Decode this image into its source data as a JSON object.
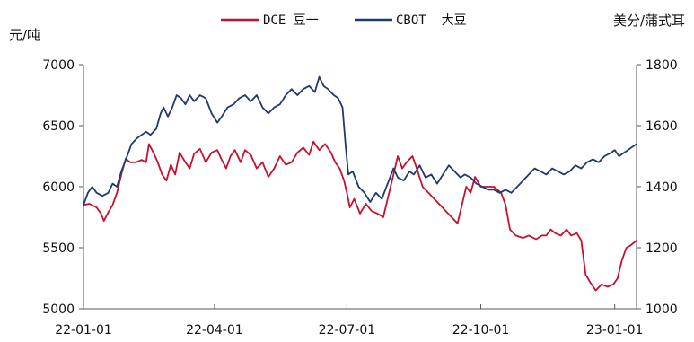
{
  "chart_data": {
    "type": "line",
    "y_left_label": "元/吨",
    "y_right_label": "美分/蒲式耳",
    "y_left_ticks": [
      "7000",
      "6500",
      "6000",
      "5500",
      "5000"
    ],
    "y_right_ticks": [
      "1800",
      "1600",
      "1400",
      "1200",
      "1000"
    ],
    "x_ticks": [
      "22-01-01",
      "22-04-01",
      "22-07-01",
      "22-10-01",
      "23-01-01"
    ],
    "ylim_left": [
      5000,
      7000
    ],
    "ylim_right": [
      1000,
      1800
    ],
    "x_range": [
      "2022-01-01",
      "2023-01-16"
    ],
    "grid": false,
    "legend_position": "top",
    "series": [
      {
        "name": "DCE 豆一",
        "axis": "left",
        "color": "#c8102e",
        "points": [
          [
            "2022-01-01",
            5850
          ],
          [
            "2022-01-05",
            5860
          ],
          [
            "2022-01-10",
            5830
          ],
          [
            "2022-01-13",
            5780
          ],
          [
            "2022-01-15",
            5720
          ],
          [
            "2022-01-18",
            5790
          ],
          [
            "2022-01-21",
            5850
          ],
          [
            "2022-01-24",
            5950
          ],
          [
            "2022-01-27",
            6100
          ],
          [
            "2022-01-30",
            6230
          ],
          [
            "2022-02-02",
            6200
          ],
          [
            "2022-02-06",
            6200
          ],
          [
            "2022-02-10",
            6220
          ],
          [
            "2022-02-13",
            6200
          ],
          [
            "2022-02-15",
            6350
          ],
          [
            "2022-02-18",
            6280
          ],
          [
            "2022-02-21",
            6200
          ],
          [
            "2022-02-24",
            6100
          ],
          [
            "2022-02-27",
            6050
          ],
          [
            "2022-03-02",
            6180
          ],
          [
            "2022-03-05",
            6100
          ],
          [
            "2022-03-08",
            6280
          ],
          [
            "2022-03-12",
            6200
          ],
          [
            "2022-03-15",
            6150
          ],
          [
            "2022-03-18",
            6270
          ],
          [
            "2022-03-22",
            6310
          ],
          [
            "2022-03-26",
            6200
          ],
          [
            "2022-03-30",
            6280
          ],
          [
            "2022-04-03",
            6300
          ],
          [
            "2022-04-06",
            6220
          ],
          [
            "2022-04-09",
            6150
          ],
          [
            "2022-04-12",
            6250
          ],
          [
            "2022-04-15",
            6300
          ],
          [
            "2022-04-19",
            6200
          ],
          [
            "2022-04-22",
            6300
          ],
          [
            "2022-04-26",
            6260
          ],
          [
            "2022-04-30",
            6150
          ],
          [
            "2022-05-04",
            6200
          ],
          [
            "2022-05-08",
            6080
          ],
          [
            "2022-05-12",
            6150
          ],
          [
            "2022-05-16",
            6250
          ],
          [
            "2022-05-20",
            6180
          ],
          [
            "2022-05-24",
            6200
          ],
          [
            "2022-05-28",
            6280
          ],
          [
            "2022-06-01",
            6320
          ],
          [
            "2022-06-05",
            6260
          ],
          [
            "2022-06-08",
            6370
          ],
          [
            "2022-06-12",
            6300
          ],
          [
            "2022-06-16",
            6350
          ],
          [
            "2022-06-20",
            6280
          ],
          [
            "2022-06-23",
            6200
          ],
          [
            "2022-06-26",
            6150
          ],
          [
            "2022-06-29",
            6050
          ],
          [
            "2022-07-01",
            5950
          ],
          [
            "2022-07-03",
            5830
          ],
          [
            "2022-07-06",
            5900
          ],
          [
            "2022-07-10",
            5780
          ],
          [
            "2022-07-14",
            5860
          ],
          [
            "2022-07-18",
            5800
          ],
          [
            "2022-07-22",
            5780
          ],
          [
            "2022-07-26",
            5750
          ],
          [
            "2022-07-30",
            5950
          ],
          [
            "2022-08-02",
            6100
          ],
          [
            "2022-08-05",
            6250
          ],
          [
            "2022-08-08",
            6150
          ],
          [
            "2022-08-11",
            6200
          ],
          [
            "2022-08-15",
            6250
          ],
          [
            "2022-08-18",
            6150
          ],
          [
            "2022-08-22",
            6000
          ],
          [
            "2022-08-26",
            5950
          ],
          [
            "2022-08-30",
            5900
          ],
          [
            "2022-09-03",
            5850
          ],
          [
            "2022-09-07",
            5800
          ],
          [
            "2022-09-11",
            5750
          ],
          [
            "2022-09-15",
            5700
          ],
          [
            "2022-09-18",
            5850
          ],
          [
            "2022-09-21",
            6000
          ],
          [
            "2022-09-24",
            5950
          ],
          [
            "2022-09-27",
            6080
          ],
          [
            "2022-10-01",
            6000
          ],
          [
            "2022-10-05",
            6000
          ],
          [
            "2022-10-10",
            6000
          ],
          [
            "2022-10-15",
            5950
          ],
          [
            "2022-10-18",
            5850
          ],
          [
            "2022-10-21",
            5650
          ],
          [
            "2022-10-25",
            5600
          ],
          [
            "2022-10-30",
            5580
          ],
          [
            "2022-11-03",
            5600
          ],
          [
            "2022-11-08",
            5570
          ],
          [
            "2022-11-12",
            5600
          ],
          [
            "2022-11-15",
            5600
          ],
          [
            "2022-11-18",
            5650
          ],
          [
            "2022-11-21",
            5620
          ],
          [
            "2022-11-25",
            5600
          ],
          [
            "2022-11-29",
            5650
          ],
          [
            "2022-12-02",
            5600
          ],
          [
            "2022-12-06",
            5620
          ],
          [
            "2022-12-09",
            5560
          ],
          [
            "2022-12-12",
            5280
          ],
          [
            "2022-12-15",
            5220
          ],
          [
            "2022-12-19",
            5150
          ],
          [
            "2022-12-23",
            5200
          ],
          [
            "2022-12-27",
            5180
          ],
          [
            "2022-12-31",
            5200
          ],
          [
            "2023-01-03",
            5250
          ],
          [
            "2023-01-06",
            5400
          ],
          [
            "2023-01-09",
            5500
          ],
          [
            "2023-01-12",
            5520
          ],
          [
            "2023-01-16",
            5560
          ]
        ]
      },
      {
        "name": "CBOT  大豆",
        "axis": "right",
        "color": "#1f3a6e",
        "points": [
          [
            "2022-01-01",
            1340
          ],
          [
            "2022-01-04",
            1380
          ],
          [
            "2022-01-07",
            1400
          ],
          [
            "2022-01-10",
            1380
          ],
          [
            "2022-01-14",
            1370
          ],
          [
            "2022-01-18",
            1380
          ],
          [
            "2022-01-21",
            1410
          ],
          [
            "2022-01-24",
            1400
          ],
          [
            "2022-01-27",
            1450
          ],
          [
            "2022-01-31",
            1500
          ],
          [
            "2022-02-03",
            1540
          ],
          [
            "2022-02-07",
            1560
          ],
          [
            "2022-02-10",
            1570
          ],
          [
            "2022-02-13",
            1580
          ],
          [
            "2022-02-16",
            1570
          ],
          [
            "2022-02-20",
            1590
          ],
          [
            "2022-02-23",
            1640
          ],
          [
            "2022-02-25",
            1660
          ],
          [
            "2022-02-28",
            1630
          ],
          [
            "2022-03-03",
            1660
          ],
          [
            "2022-03-06",
            1700
          ],
          [
            "2022-03-09",
            1690
          ],
          [
            "2022-03-12",
            1670
          ],
          [
            "2022-03-15",
            1700
          ],
          [
            "2022-03-18",
            1680
          ],
          [
            "2022-03-22",
            1700
          ],
          [
            "2022-03-26",
            1690
          ],
          [
            "2022-03-30",
            1640
          ],
          [
            "2022-04-03",
            1610
          ],
          [
            "2022-04-06",
            1630
          ],
          [
            "2022-04-10",
            1660
          ],
          [
            "2022-04-14",
            1670
          ],
          [
            "2022-04-18",
            1690
          ],
          [
            "2022-04-22",
            1700
          ],
          [
            "2022-04-26",
            1680
          ],
          [
            "2022-04-30",
            1700
          ],
          [
            "2022-05-04",
            1660
          ],
          [
            "2022-05-08",
            1640
          ],
          [
            "2022-05-12",
            1660
          ],
          [
            "2022-05-16",
            1670
          ],
          [
            "2022-05-20",
            1700
          ],
          [
            "2022-05-24",
            1720
          ],
          [
            "2022-05-28",
            1700
          ],
          [
            "2022-06-01",
            1720
          ],
          [
            "2022-06-05",
            1730
          ],
          [
            "2022-06-09",
            1710
          ],
          [
            "2022-06-12",
            1760
          ],
          [
            "2022-06-15",
            1730
          ],
          [
            "2022-06-18",
            1720
          ],
          [
            "2022-06-22",
            1700
          ],
          [
            "2022-06-25",
            1690
          ],
          [
            "2022-06-28",
            1660
          ],
          [
            "2022-06-30",
            1540
          ],
          [
            "2022-07-02",
            1440
          ],
          [
            "2022-07-05",
            1450
          ],
          [
            "2022-07-09",
            1400
          ],
          [
            "2022-07-13",
            1380
          ],
          [
            "2022-07-17",
            1350
          ],
          [
            "2022-07-21",
            1380
          ],
          [
            "2022-07-25",
            1360
          ],
          [
            "2022-07-29",
            1410
          ],
          [
            "2022-08-02",
            1460
          ],
          [
            "2022-08-05",
            1430
          ],
          [
            "2022-08-09",
            1420
          ],
          [
            "2022-08-13",
            1450
          ],
          [
            "2022-08-16",
            1440
          ],
          [
            "2022-08-20",
            1470
          ],
          [
            "2022-08-24",
            1430
          ],
          [
            "2022-08-28",
            1440
          ],
          [
            "2022-09-01",
            1410
          ],
          [
            "2022-09-05",
            1440
          ],
          [
            "2022-09-09",
            1470
          ],
          [
            "2022-09-13",
            1450
          ],
          [
            "2022-09-17",
            1430
          ],
          [
            "2022-09-20",
            1440
          ],
          [
            "2022-09-24",
            1430
          ],
          [
            "2022-09-28",
            1410
          ],
          [
            "2022-10-02",
            1400
          ],
          [
            "2022-10-06",
            1390
          ],
          [
            "2022-10-10",
            1390
          ],
          [
            "2022-10-14",
            1380
          ],
          [
            "2022-10-18",
            1390
          ],
          [
            "2022-10-22",
            1380
          ],
          [
            "2022-10-26",
            1400
          ],
          [
            "2022-10-30",
            1420
          ],
          [
            "2022-11-03",
            1440
          ],
          [
            "2022-11-07",
            1460
          ],
          [
            "2022-11-11",
            1450
          ],
          [
            "2022-11-15",
            1440
          ],
          [
            "2022-11-19",
            1460
          ],
          [
            "2022-11-23",
            1450
          ],
          [
            "2022-11-27",
            1440
          ],
          [
            "2022-12-01",
            1450
          ],
          [
            "2022-12-05",
            1470
          ],
          [
            "2022-12-09",
            1460
          ],
          [
            "2022-12-13",
            1480
          ],
          [
            "2022-12-17",
            1490
          ],
          [
            "2022-12-21",
            1480
          ],
          [
            "2022-12-25",
            1500
          ],
          [
            "2022-12-29",
            1510
          ],
          [
            "2023-01-01",
            1520
          ],
          [
            "2023-01-04",
            1500
          ],
          [
            "2023-01-07",
            1510
          ],
          [
            "2023-01-10",
            1520
          ],
          [
            "2023-01-13",
            1530
          ],
          [
            "2023-01-16",
            1540
          ]
        ]
      }
    ]
  }
}
